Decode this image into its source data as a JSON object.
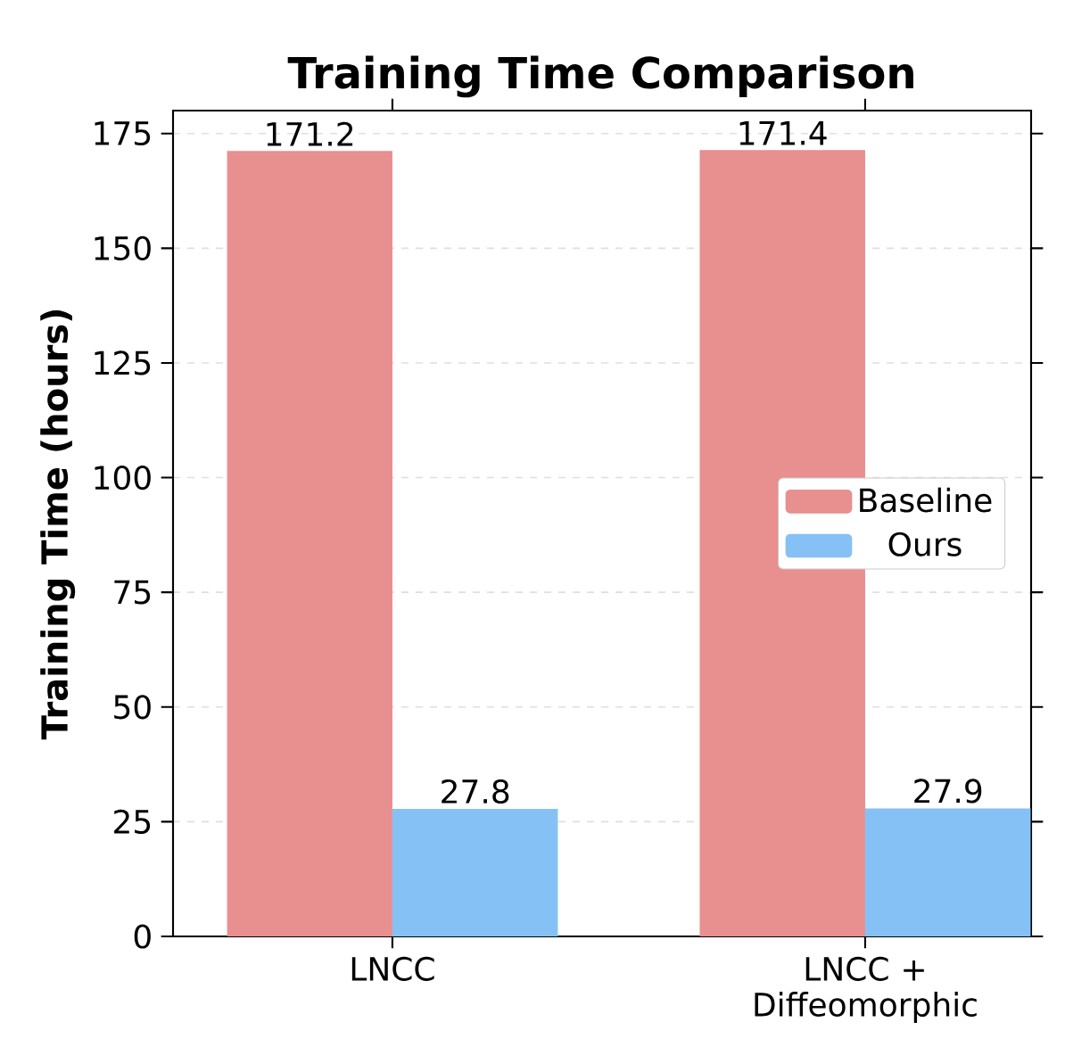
{
  "chart_data": {
    "type": "bar",
    "title": "Training Time Comparison",
    "ylabel": "Training Time (hours)",
    "categories": [
      "LNCC",
      "LNCC + Diffeomorphic"
    ],
    "series": [
      {
        "name": "Baseline",
        "color": "#e88f8f",
        "values": [
          171.2,
          171.4
        ]
      },
      {
        "name": "Ours",
        "color": "#85c1f5",
        "values": [
          27.8,
          27.9
        ]
      }
    ],
    "ylim": [
      0,
      180
    ],
    "yticks": [
      0,
      25,
      50,
      75,
      100,
      125,
      150,
      175
    ],
    "grid": "y",
    "legend": "right",
    "data_labels": true
  }
}
